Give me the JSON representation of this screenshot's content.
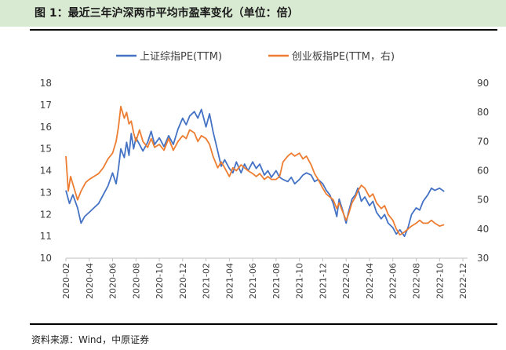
{
  "figure": {
    "title": "图 1：最近三年沪深两市平均市盈率变化（单位：倍）",
    "source": "资料来源：Wind，中原证券"
  },
  "chart_data": {
    "type": "line",
    "title": "",
    "legend_position": "top-center",
    "x_tick_labels": [
      "2020-02",
      "2020-04",
      "2020-06",
      "2020-08",
      "2020-10",
      "2020-12",
      "2021-02",
      "2021-04",
      "2021-06",
      "2021-08",
      "2021-10",
      "2021-12",
      "2022-02",
      "2022-04",
      "2022-06",
      "2022-08",
      "2022-10",
      "2022-12"
    ],
    "y_left": {
      "min": 10,
      "max": 18,
      "ticks": [
        10,
        11,
        12,
        13,
        14,
        15,
        16,
        17,
        18
      ]
    },
    "y_right": {
      "min": 30,
      "max": 90,
      "ticks": [
        30,
        40,
        50,
        60,
        70,
        80,
        90
      ]
    },
    "series": [
      {
        "name": "上证综指PE(TTM)",
        "axis": "left",
        "color": "#4472c4",
        "points": [
          [
            0,
            13.1
          ],
          [
            0.3,
            12.5
          ],
          [
            0.6,
            12.9
          ],
          [
            1,
            12.3
          ],
          [
            1.3,
            11.6
          ],
          [
            1.6,
            11.9
          ],
          [
            2,
            12.1
          ],
          [
            2.4,
            12.3
          ],
          [
            2.8,
            12.5
          ],
          [
            3.2,
            12.9
          ],
          [
            3.6,
            13.3
          ],
          [
            4,
            13.9
          ],
          [
            4.3,
            13.4
          ],
          [
            4.5,
            14.1
          ],
          [
            4.7,
            15.0
          ],
          [
            5,
            14.6
          ],
          [
            5.2,
            15.3
          ],
          [
            5.4,
            14.7
          ],
          [
            5.6,
            15.7
          ],
          [
            5.8,
            15.0
          ],
          [
            6,
            15.5
          ],
          [
            6.3,
            15.2
          ],
          [
            6.6,
            14.9
          ],
          [
            7,
            15.3
          ],
          [
            7.3,
            15.8
          ],
          [
            7.6,
            15.2
          ],
          [
            8,
            15.5
          ],
          [
            8.4,
            15.1
          ],
          [
            8.8,
            15.6
          ],
          [
            9.2,
            15.2
          ],
          [
            9.6,
            15.9
          ],
          [
            10,
            16.4
          ],
          [
            10.3,
            16.1
          ],
          [
            10.6,
            16.5
          ],
          [
            11,
            16.7
          ],
          [
            11.3,
            16.4
          ],
          [
            11.6,
            16.8
          ],
          [
            12,
            16.0
          ],
          [
            12.3,
            16.6
          ],
          [
            12.6,
            15.8
          ],
          [
            13,
            14.9
          ],
          [
            13.3,
            14.2
          ],
          [
            13.6,
            14.5
          ],
          [
            14,
            14.1
          ],
          [
            14.3,
            13.9
          ],
          [
            14.6,
            14.4
          ],
          [
            15,
            13.9
          ],
          [
            15.3,
            14.3
          ],
          [
            15.6,
            14.0
          ],
          [
            16,
            14.4
          ],
          [
            16.3,
            14.1
          ],
          [
            16.6,
            14.3
          ],
          [
            17,
            13.8
          ],
          [
            17.3,
            14.0
          ],
          [
            17.6,
            13.7
          ],
          [
            18,
            14.0
          ],
          [
            18.3,
            13.7
          ],
          [
            18.6,
            13.6
          ],
          [
            19,
            13.5
          ],
          [
            19.3,
            13.7
          ],
          [
            19.6,
            13.4
          ],
          [
            20,
            13.6
          ],
          [
            20.3,
            13.8
          ],
          [
            20.6,
            13.9
          ],
          [
            21,
            13.8
          ],
          [
            21.3,
            13.5
          ],
          [
            21.6,
            13.6
          ],
          [
            22,
            13.4
          ],
          [
            22.3,
            13.1
          ],
          [
            22.6,
            12.9
          ],
          [
            22.9,
            12.5
          ],
          [
            23.2,
            11.9
          ],
          [
            23.4,
            12.7
          ],
          [
            23.7,
            12.2
          ],
          [
            24,
            11.6
          ],
          [
            24.2,
            12.1
          ],
          [
            24.5,
            12.7
          ],
          [
            24.8,
            12.9
          ],
          [
            25,
            13.2
          ],
          [
            25.3,
            12.6
          ],
          [
            25.6,
            12.8
          ],
          [
            26,
            12.4
          ],
          [
            26.3,
            12.6
          ],
          [
            26.6,
            12.1
          ],
          [
            27,
            11.8
          ],
          [
            27.3,
            12.0
          ],
          [
            27.6,
            11.6
          ],
          [
            28,
            11.4
          ],
          [
            28.3,
            11.1
          ],
          [
            28.6,
            11.3
          ],
          [
            29,
            11.0
          ],
          [
            29.3,
            11.4
          ],
          [
            29.6,
            12.0
          ],
          [
            30,
            12.3
          ],
          [
            30.3,
            12.2
          ],
          [
            30.6,
            12.6
          ],
          [
            31,
            12.9
          ],
          [
            31.3,
            13.2
          ],
          [
            31.6,
            13.1
          ],
          [
            32,
            13.2
          ],
          [
            32.4,
            13.05
          ]
        ]
      },
      {
        "name": "创业板指PE(TTM，右)",
        "axis": "right",
        "color": "#ed7d31",
        "points": [
          [
            0,
            65
          ],
          [
            0.2,
            53
          ],
          [
            0.4,
            58
          ],
          [
            0.7,
            54
          ],
          [
            1,
            50
          ],
          [
            1.3,
            53
          ],
          [
            1.7,
            56
          ],
          [
            2,
            57
          ],
          [
            2.4,
            58
          ],
          [
            2.8,
            59
          ],
          [
            3.2,
            61
          ],
          [
            3.6,
            64
          ],
          [
            4,
            66
          ],
          [
            4.3,
            70
          ],
          [
            4.5,
            75
          ],
          [
            4.7,
            82
          ],
          [
            5,
            78
          ],
          [
            5.2,
            80
          ],
          [
            5.4,
            76
          ],
          [
            5.6,
            77
          ],
          [
            5.8,
            73
          ],
          [
            6,
            70
          ],
          [
            6.3,
            74
          ],
          [
            6.6,
            70
          ],
          [
            7,
            68
          ],
          [
            7.3,
            71
          ],
          [
            7.6,
            68
          ],
          [
            8,
            69
          ],
          [
            8.4,
            67
          ],
          [
            8.8,
            71
          ],
          [
            9.2,
            67
          ],
          [
            9.6,
            70
          ],
          [
            10,
            72
          ],
          [
            10.3,
            71
          ],
          [
            10.6,
            74
          ],
          [
            11,
            73
          ],
          [
            11.3,
            70
          ],
          [
            11.6,
            72
          ],
          [
            12,
            71
          ],
          [
            12.3,
            69
          ],
          [
            12.6,
            65
          ],
          [
            13,
            61
          ],
          [
            13.3,
            63
          ],
          [
            13.6,
            61
          ],
          [
            14,
            58
          ],
          [
            14.3,
            61
          ],
          [
            14.6,
            60
          ],
          [
            15,
            62
          ],
          [
            15.3,
            61
          ],
          [
            15.6,
            60
          ],
          [
            16,
            59
          ],
          [
            16.3,
            58
          ],
          [
            16.6,
            59
          ],
          [
            17,
            57
          ],
          [
            17.3,
            58
          ],
          [
            17.6,
            57
          ],
          [
            18,
            57
          ],
          [
            18.3,
            58
          ],
          [
            18.6,
            63
          ],
          [
            19,
            65
          ],
          [
            19.3,
            66
          ],
          [
            19.6,
            65
          ],
          [
            20,
            66
          ],
          [
            20.3,
            64
          ],
          [
            20.6,
            65
          ],
          [
            21,
            62
          ],
          [
            21.3,
            59
          ],
          [
            21.6,
            57
          ],
          [
            22,
            54
          ],
          [
            22.3,
            52
          ],
          [
            22.6,
            51
          ],
          [
            22.9,
            50
          ],
          [
            23.2,
            47
          ],
          [
            23.4,
            49
          ],
          [
            23.7,
            46
          ],
          [
            24,
            43
          ],
          [
            24.2,
            45
          ],
          [
            24.5,
            49
          ],
          [
            24.8,
            51
          ],
          [
            25,
            53
          ],
          [
            25.3,
            55
          ],
          [
            25.6,
            54
          ],
          [
            26,
            51
          ],
          [
            26.3,
            52
          ],
          [
            26.6,
            49
          ],
          [
            27,
            47
          ],
          [
            27.3,
            48
          ],
          [
            27.6,
            45
          ],
          [
            28,
            43
          ],
          [
            28.3,
            40
          ],
          [
            28.6,
            38
          ],
          [
            29,
            39
          ],
          [
            29.3,
            40
          ],
          [
            29.6,
            41
          ],
          [
            30,
            42
          ],
          [
            30.3,
            43
          ],
          [
            30.6,
            42
          ],
          [
            31,
            42
          ],
          [
            31.3,
            43
          ],
          [
            31.6,
            42
          ],
          [
            32,
            41
          ],
          [
            32.4,
            41.5
          ]
        ]
      }
    ]
  }
}
